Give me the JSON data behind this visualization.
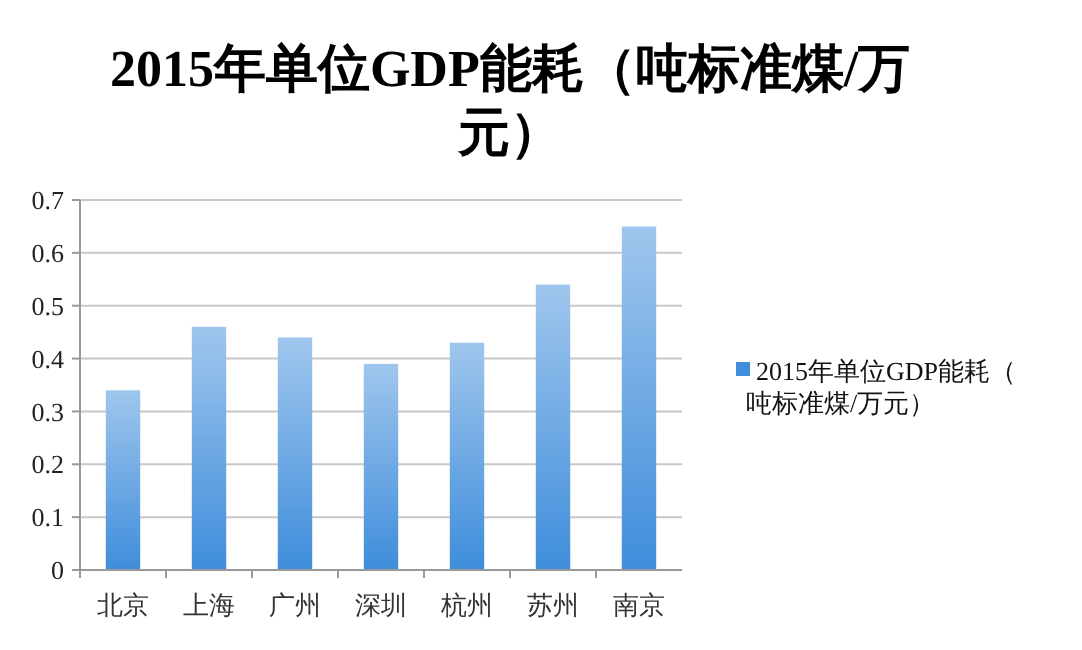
{
  "chart_data": {
    "type": "bar",
    "title": "2015年单位GDP能耗（吨标准煤/万元）",
    "categories": [
      "北京",
      "上海",
      "广州",
      "深圳",
      "杭州",
      "苏州",
      "南京"
    ],
    "series": [
      {
        "name": "2015年单位GDP能耗（吨标准煤/万元）",
        "color": "#3f8ddb",
        "values": [
          0.34,
          0.46,
          0.44,
          0.39,
          0.43,
          0.54,
          0.65
        ]
      }
    ],
    "ylim": [
      0,
      0.7
    ],
    "yticks": [
      0,
      0.1,
      0.2,
      0.3,
      0.4,
      0.5,
      0.6,
      0.7
    ],
    "grid": "y",
    "legend": "right"
  }
}
